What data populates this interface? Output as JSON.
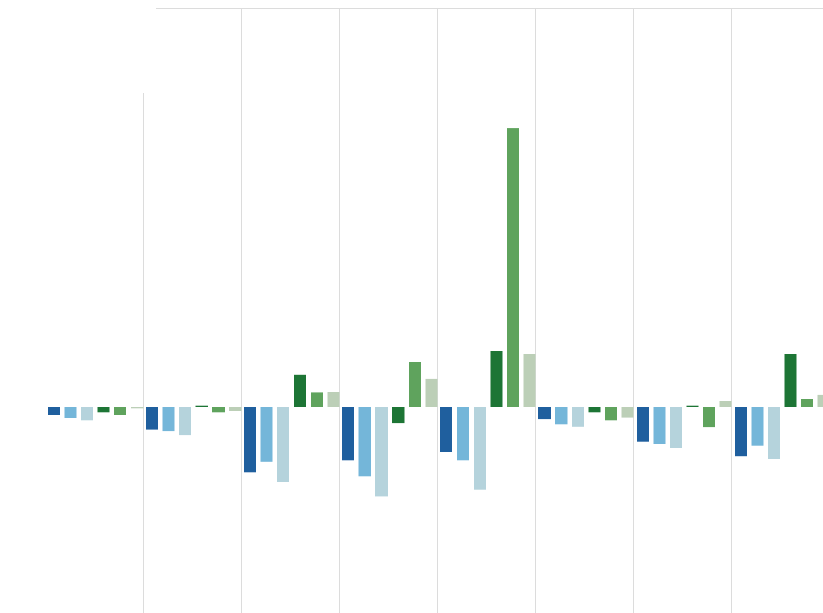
{
  "chart_data": {
    "type": "bar",
    "title": "",
    "xlabel": "",
    "ylabel": "",
    "grid": "vertical",
    "legend": "none",
    "categories": [
      "",
      "",
      "",
      "",
      "",
      "",
      "",
      "",
      ""
    ],
    "ylim": [
      -1.0,
      1.4
    ],
    "series": [
      {
        "color": "#1f5f9e",
        "values": [
          -0.04,
          -0.11,
          -0.32,
          -0.26,
          -0.22,
          -0.06,
          -0.17,
          -0.24,
          0
        ]
      },
      {
        "color": "#74b6d9",
        "values": [
          -0.055,
          -0.12,
          -0.27,
          -0.34,
          -0.26,
          -0.085,
          -0.18,
          -0.19,
          0
        ]
      },
      {
        "color": "#b5d3dc",
        "values": [
          -0.065,
          -0.14,
          -0.37,
          -0.44,
          -0.405,
          -0.095,
          -0.2,
          -0.255,
          0
        ]
      },
      {
        "color": "#1d7535",
        "values": [
          -0.025,
          0.005,
          0.16,
          -0.08,
          0.275,
          -0.025,
          0.005,
          0.26,
          0
        ]
      },
      {
        "color": "#5fa35d",
        "values": [
          -0.04,
          -0.025,
          0.07,
          0.22,
          1.37,
          -0.065,
          -0.1,
          0.04,
          0
        ]
      },
      {
        "color": "#bccfb7",
        "values": [
          -0.005,
          -0.02,
          0.075,
          0.14,
          0.26,
          -0.05,
          0.03,
          0.06,
          0
        ]
      }
    ],
    "colors": {
      "gridline": "#dcdcdc",
      "background": "#ffffff"
    }
  }
}
